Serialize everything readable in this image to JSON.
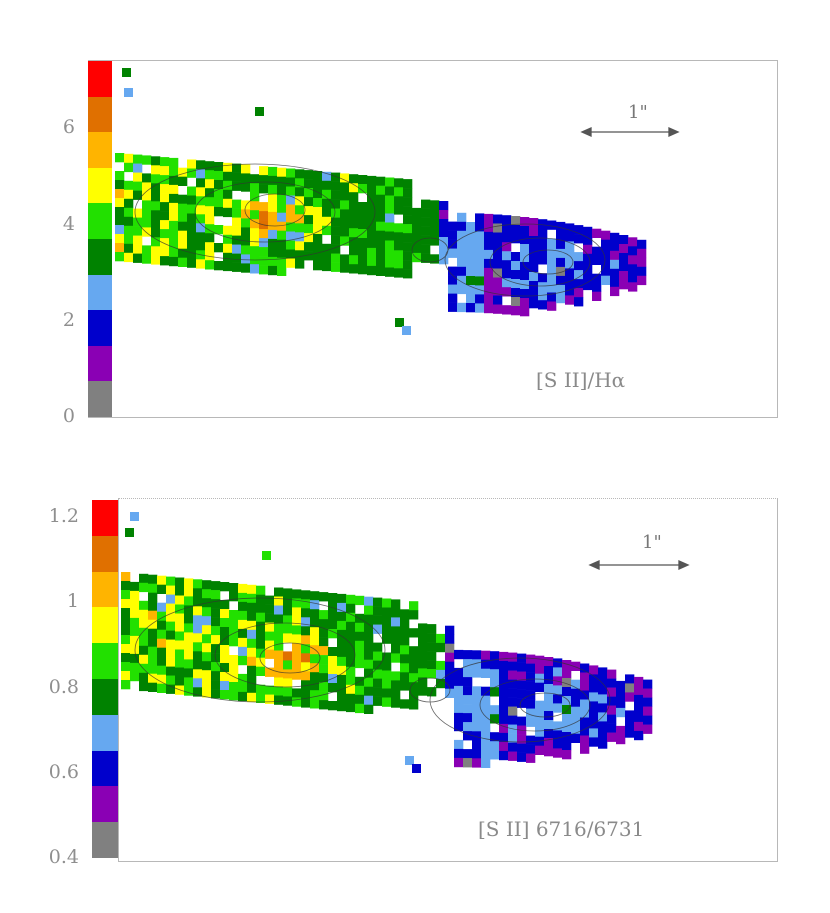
{
  "chart_data": [
    {
      "type": "heatmap",
      "title": "[S II]/Hα",
      "ylim": [
        0,
        7.4
      ],
      "ticks": [
        "0",
        "2",
        "4",
        "6"
      ],
      "colorbar": [
        "#808080",
        "#8a00b4",
        "#0000cc",
        "#66a8f0",
        "#008200",
        "#22e000",
        "#ffff00",
        "#ffb400",
        "#e07000",
        "#ff0000"
      ],
      "scale_label": "1\""
    },
    {
      "type": "heatmap",
      "title": "[S II] 6716/6731",
      "ylim": [
        0.4,
        1.24
      ],
      "ticks": [
        "0.4",
        "0.6",
        "0.8",
        "1",
        "1.2"
      ],
      "colorbar": [
        "#808080",
        "#8a00b4",
        "#0000cc",
        "#66a8f0",
        "#008200",
        "#22e000",
        "#ffff00",
        "#ffb400",
        "#e07000",
        "#ff0000"
      ],
      "scale_label": "1\""
    }
  ]
}
